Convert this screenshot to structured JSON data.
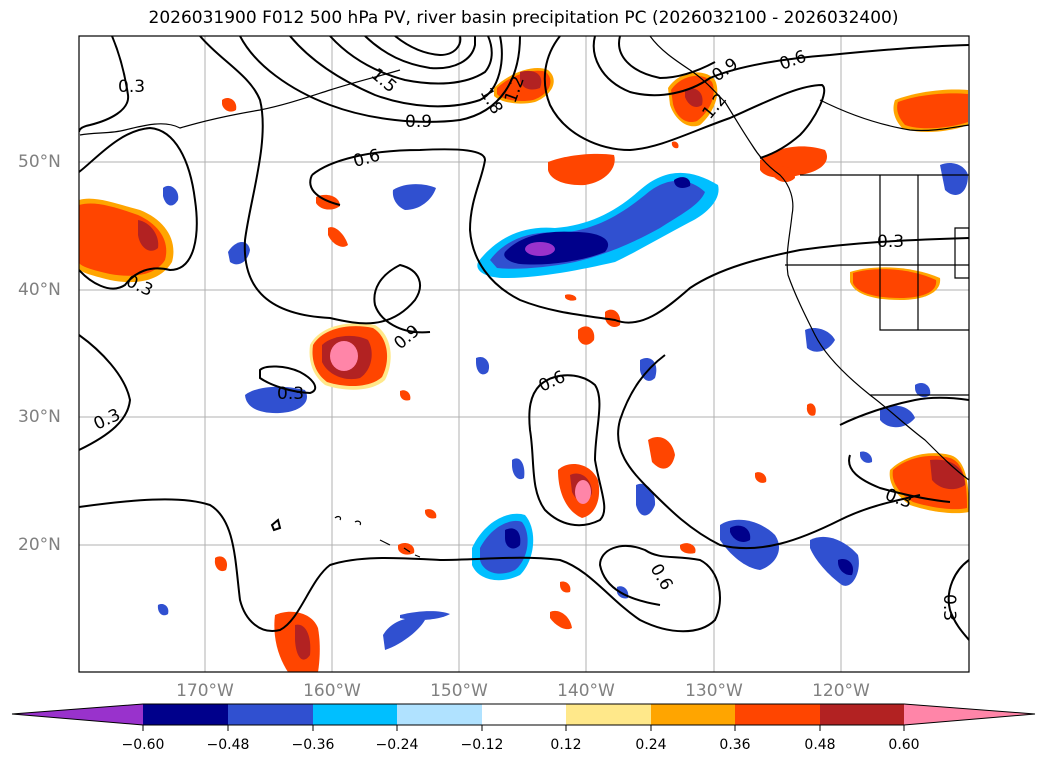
{
  "title": "2026031900 F012 500 hPa PV, river basin precipitation PC (2026032100 - 2026032400)",
  "map": {
    "lat_labels": [
      "50°N",
      "40°N",
      "30°N",
      "20°N"
    ],
    "lon_labels": [
      "170°W",
      "160°W",
      "150°W",
      "140°W",
      "130°W",
      "120°W"
    ],
    "contour_labels": [
      "0.3",
      "0.3",
      "0.3",
      "0.3",
      "0.3",
      "0.3",
      "0.3",
      "0.6",
      "0.6",
      "0.6",
      "0.6",
      "0.9",
      "0.9",
      "0.9",
      "1.2",
      "1.5",
      "1.8",
      "1.2"
    ]
  },
  "colorbar": {
    "tick_labels": [
      "−0.60",
      "−0.48",
      "−0.36",
      "−0.24",
      "−0.12",
      "0.12",
      "0.24",
      "0.36",
      "0.48",
      "0.60"
    ],
    "colors": [
      "#9932cc",
      "#00008b",
      "#3050d0",
      "#00bfff",
      "#b0e2ff",
      "#ffffff",
      "#ffe88a",
      "#ffa500",
      "#ff4500",
      "#b22222",
      "#ff85a8"
    ]
  }
}
